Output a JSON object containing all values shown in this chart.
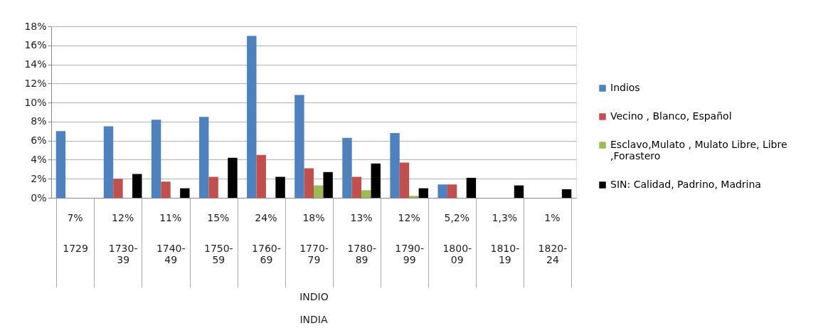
{
  "chart_data": {
    "type": "bar",
    "categories": [
      "1729",
      "1730-39",
      "1740-49",
      "1750-59",
      "1760-69",
      "1770-79",
      "1780-89",
      "1790-99",
      "1800-09",
      "1810-19",
      "1820-24"
    ],
    "series": [
      {
        "name": "Indios",
        "color": "#4f81bd",
        "values": [
          7.0,
          7.5,
          8.2,
          8.5,
          17.0,
          10.8,
          6.3,
          6.8,
          1.4,
          null,
          null
        ]
      },
      {
        "name": "Vecino , Blanco, Español",
        "color": "#c0504d",
        "values": [
          null,
          2.0,
          1.7,
          2.2,
          4.5,
          3.1,
          2.2,
          3.7,
          1.4,
          null,
          null
        ]
      },
      {
        "name": "Esclavo,Mulato , Mulato Libre, Libre ,Forastero",
        "color": "#9bbb59",
        "values": [
          null,
          null,
          null,
          null,
          null,
          1.3,
          0.8,
          0.2,
          null,
          null,
          null
        ]
      },
      {
        "name": "SIN: Calidad,  Padrino, Madrina",
        "color": "#000000",
        "values": [
          null,
          2.5,
          1.0,
          4.2,
          2.2,
          2.7,
          3.6,
          1.0,
          2.1,
          1.3,
          0.9
        ]
      }
    ],
    "xlabel": "INDIO",
    "annotations": [
      "7%",
      "12%",
      "11%",
      "15%",
      "24%",
      "18%",
      "13%",
      "12%",
      "5,2%",
      "1,3%",
      "1%",
      "INDIA"
    ],
    "ylim": [
      0,
      18
    ],
    "yticks": [
      {
        "value": 0,
        "label": "0%"
      },
      {
        "value": 2,
        "label": "2%"
      },
      {
        "value": 4,
        "label": "4%"
      },
      {
        "value": 6,
        "label": "6%"
      },
      {
        "value": 8,
        "label": "8%"
      },
      {
        "value": 10,
        "label": "10%"
      },
      {
        "value": 12,
        "label": "12%"
      },
      {
        "value": 14,
        "label": "14%"
      },
      {
        "value": 16,
        "label": "16%"
      },
      {
        "value": 18,
        "label": "18%"
      }
    ],
    "grid": "y",
    "legend": "right"
  }
}
